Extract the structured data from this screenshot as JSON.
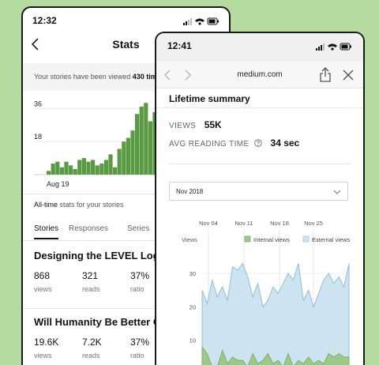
{
  "stats_screen": {
    "status_time": "12:32",
    "title": "Stats",
    "banner_prefix": "Your stories have been viewed ",
    "banner_bold": "430 tim",
    "alltime_bold": "All-time",
    "alltime_rest": " stats for your stories",
    "tabs": [
      "Stories",
      "Responses",
      "Series"
    ],
    "stories": [
      {
        "title": "Designing the LEVEL Logotype",
        "views": "868",
        "views_label": "views",
        "reads": "321",
        "reads_label": "reads",
        "ratio": "37%",
        "ratio_label": "ratio"
      },
      {
        "title": "Will Humanity Be Better Off",
        "views": "19.6K",
        "views_label": "views",
        "reads": "7.2K",
        "reads_label": "reads",
        "ratio": "37%",
        "ratio_label": "ratio"
      }
    ]
  },
  "browser_screen": {
    "status_time": "12:41",
    "url": "medium.com",
    "heading": "Lifetime summary",
    "views_label": "VIEWS",
    "views_value": "55K",
    "read_time_label": "AVG READING TIME",
    "read_time_value": "34 sec",
    "month_select": "Nov 2018"
  },
  "colors": {
    "background": "#b5dba1",
    "bar_green": "#5b9a45",
    "internal_fill": "#9cc98a",
    "external_fill": "#cde3ef",
    "external_line": "#8ebfd8"
  },
  "chart_data": [
    {
      "type": "bar",
      "x_tick_labels": [
        "Aug 19"
      ],
      "y_ticks": [
        18,
        36
      ],
      "values": [
        2,
        6,
        7,
        4,
        7,
        5,
        3,
        8,
        9,
        7,
        8,
        5,
        6,
        8,
        11,
        4,
        14,
        18,
        20,
        24,
        33,
        37,
        39,
        29,
        34,
        24
      ],
      "legend": [],
      "grid": true
    },
    {
      "type": "area",
      "x_tick_labels": [
        "Nov 04",
        "Nov 11",
        "Nov 18",
        "Nov 25"
      ],
      "ylabel": "Views",
      "y_ticks": [
        10,
        20,
        30
      ],
      "ylim": [
        0,
        35
      ],
      "grid": true,
      "legend_position": "top-right",
      "series": [
        {
          "name": "Internal views",
          "color": "#9cc98a",
          "values": [
            8,
            6,
            2,
            2,
            7,
            3,
            5,
            4,
            4,
            2,
            6,
            3,
            4,
            6,
            3,
            4,
            2,
            6,
            2,
            4,
            3,
            5,
            3,
            4,
            3,
            6,
            5,
            6,
            5,
            5
          ]
        },
        {
          "name": "External views",
          "color": "#cde3ef",
          "values": [
            25,
            21,
            28,
            23,
            26,
            22,
            32,
            31,
            33,
            29,
            23,
            27,
            20,
            22,
            26,
            24,
            27,
            30,
            28,
            33,
            22,
            25,
            20,
            24,
            28,
            30,
            27,
            29,
            26,
            33
          ]
        }
      ]
    }
  ]
}
